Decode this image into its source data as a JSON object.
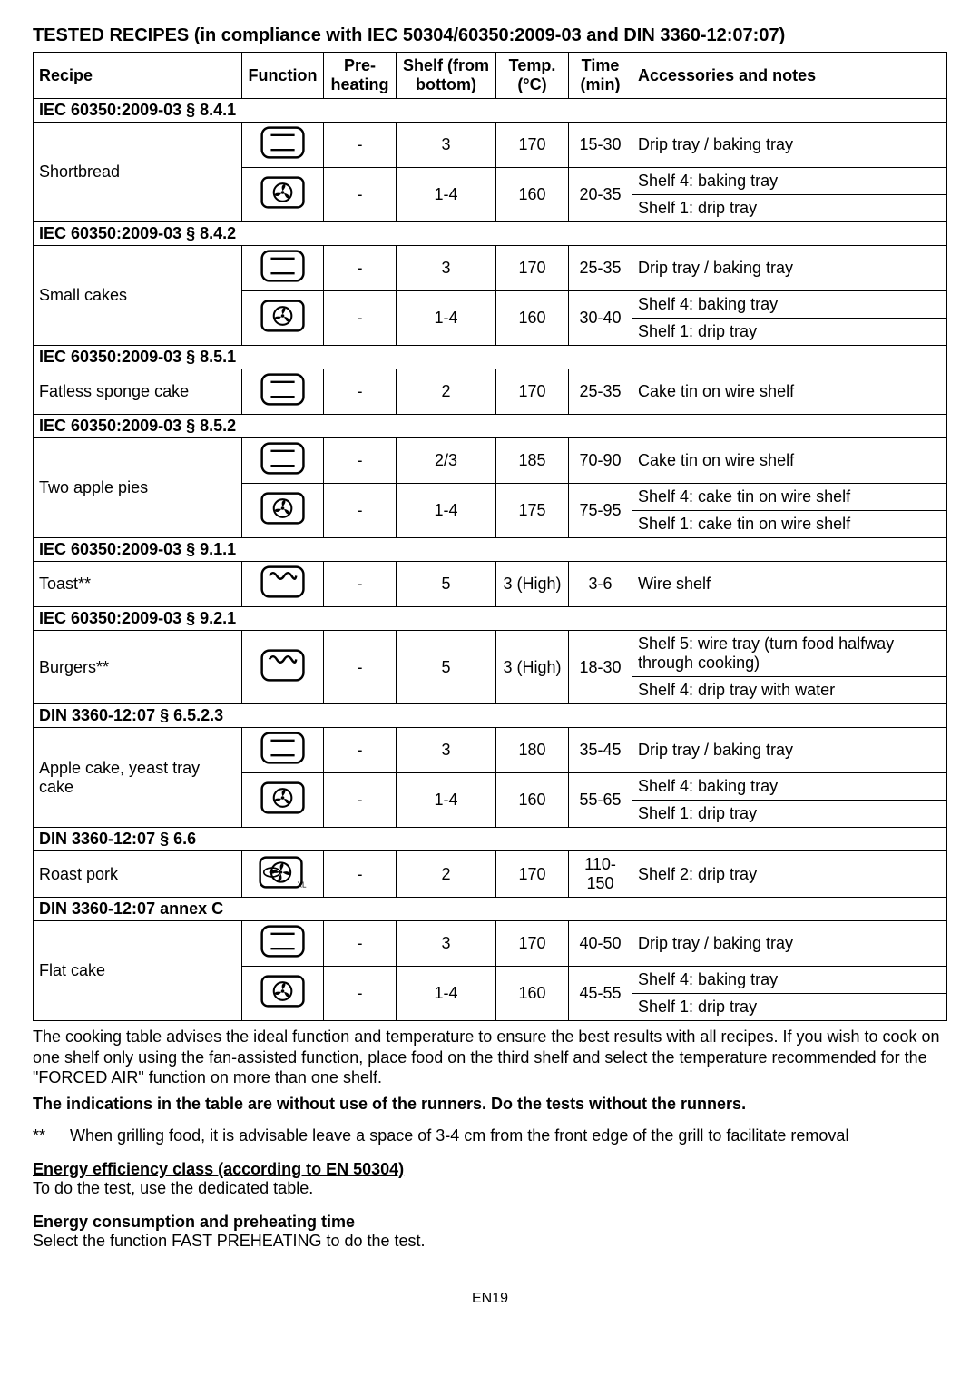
{
  "page": {
    "title": "TESTED RECIPES (in compliance with IEC 50304/60350:2009-03 and DIN 3360-12:07:07)",
    "footer": "EN19"
  },
  "columns": {
    "recipe": "Recipe",
    "function": "Function",
    "preheating": "Pre-heating",
    "shelf": "Shelf (from bottom)",
    "temp": "Temp. (°C)",
    "time": "Time (min)",
    "notes": "Accessories and notes"
  },
  "widths": {
    "recipe": 230,
    "function": 90,
    "preheating": 80,
    "shelf": 110,
    "temp": 80,
    "time": 70
  },
  "icons": {
    "conventional": "conventional",
    "fan": "fan",
    "grill": "grill",
    "turbogrill": "turbogrill"
  },
  "sections": [
    {
      "label": "IEC 60350:2009-03 § 8.4.1",
      "recipes": [
        {
          "name": "Shortbread",
          "rows": [
            {
              "icon": "conventional",
              "pre": "-",
              "shelf": "3",
              "temp": "170",
              "time": "15-30",
              "notes": [
                "Drip tray / baking tray"
              ]
            },
            {
              "icon": "fan",
              "pre": "-",
              "shelf": "1-4",
              "temp": "160",
              "time": "20-35",
              "notes": [
                "Shelf 4: baking tray",
                "Shelf 1: drip tray"
              ]
            }
          ]
        }
      ]
    },
    {
      "label": "IEC 60350:2009-03 § 8.4.2",
      "recipes": [
        {
          "name": "Small cakes",
          "rows": [
            {
              "icon": "conventional",
              "pre": "-",
              "shelf": "3",
              "temp": "170",
              "time": "25-35",
              "notes": [
                "Drip tray / baking tray"
              ]
            },
            {
              "icon": "fan",
              "pre": "-",
              "shelf": "1-4",
              "temp": "160",
              "time": "30-40",
              "notes": [
                "Shelf 4: baking tray",
                "Shelf 1: drip tray"
              ]
            }
          ]
        }
      ]
    },
    {
      "label": "IEC 60350:2009-03 § 8.5.1",
      "recipes": [
        {
          "name": "Fatless sponge cake",
          "rows": [
            {
              "icon": "conventional",
              "pre": "-",
              "shelf": "2",
              "temp": "170",
              "time": "25-35",
              "notes": [
                "Cake tin on wire shelf"
              ]
            }
          ]
        }
      ]
    },
    {
      "label": "IEC 60350:2009-03 § 8.5.2",
      "recipes": [
        {
          "name": "Two apple pies",
          "rows": [
            {
              "icon": "conventional",
              "pre": "-",
              "shelf": "2/3",
              "temp": "185",
              "time": "70-90",
              "notes": [
                "Cake tin on wire shelf"
              ]
            },
            {
              "icon": "fan",
              "pre": "-",
              "shelf": "1-4",
              "temp": "175",
              "time": "75-95",
              "notes": [
                "Shelf 4: cake tin on wire shelf",
                "Shelf 1: cake tin on wire shelf"
              ]
            }
          ]
        }
      ]
    },
    {
      "label": "IEC 60350:2009-03 § 9.1.1",
      "recipes": [
        {
          "name": "Toast**",
          "rows": [
            {
              "icon": "grill",
              "pre": "-",
              "shelf": "5",
              "temp": "3 (High)",
              "time": "3-6",
              "notes": [
                "Wire shelf"
              ]
            }
          ]
        }
      ]
    },
    {
      "label": "IEC 60350:2009-03 § 9.2.1",
      "recipes": [
        {
          "name": "Burgers**",
          "rows": [
            {
              "icon": "grill",
              "pre": "-",
              "shelf": "5",
              "temp": "3 (High)",
              "time": "18-30",
              "notes": [
                "Shelf 5: wire tray (turn food halfway through cooking)",
                "Shelf 4: drip tray with water"
              ]
            }
          ]
        }
      ]
    },
    {
      "label": "DIN 3360-12:07 § 6.5.2.3",
      "recipes": [
        {
          "name": "Apple cake, yeast tray cake",
          "rows": [
            {
              "icon": "conventional",
              "pre": "-",
              "shelf": "3",
              "temp": "180",
              "time": "35-45",
              "notes": [
                "Drip tray / baking tray"
              ]
            },
            {
              "icon": "fan",
              "pre": "-",
              "shelf": "1-4",
              "temp": "160",
              "time": "55-65",
              "notes": [
                "Shelf 4: baking tray",
                "Shelf 1: drip tray"
              ]
            }
          ]
        }
      ]
    },
    {
      "label": "DIN 3360-12:07 § 6.6",
      "recipes": [
        {
          "name": "Roast pork",
          "rows": [
            {
              "icon": "turbogrill",
              "pre": "-",
              "shelf": "2",
              "temp": "170",
              "time": "110-150",
              "notes": [
                "Shelf 2: drip tray"
              ]
            }
          ]
        }
      ]
    },
    {
      "label": "DIN 3360-12:07 annex C",
      "recipes": [
        {
          "name": "Flat cake",
          "rows": [
            {
              "icon": "conventional",
              "pre": "-",
              "shelf": "3",
              "temp": "170",
              "time": "40-50",
              "notes": [
                "Drip tray / baking tray"
              ]
            },
            {
              "icon": "fan",
              "pre": "-",
              "shelf": "1-4",
              "temp": "160",
              "time": "45-55",
              "notes": [
                "Shelf 4: baking tray",
                "Shelf 1: drip tray"
              ]
            }
          ]
        }
      ]
    }
  ],
  "afterText": {
    "p1": "The cooking table advises the ideal function and temperature to ensure the best results with all recipes. If you wish to cook on one shelf only using the fan-assisted function, place food on the third shelf and select the temperature recommended for the \"FORCED AIR\" function on more than one shelf.",
    "bold1": "The indications in the table are without use of the runners. Do the tests without the runners.",
    "starPrefix": "**",
    "star": "When grilling food, it is advisable leave a space of 3-4 cm from the front edge of the grill to facilitate removal",
    "eeHeading": "Energy efficiency class (according to EN 50304)",
    "eeText": "To do the test, use the dedicated table.",
    "ecHeading": "Energy consumption and preheating time",
    "ecText": "Select the  function FAST PREHEATING to do the test."
  },
  "svgIcons": {
    "conventional": "<svg viewBox='0 0 60 44'><rect x='2' y='2' width='56' height='40' rx='10' ry='10' fill='none' stroke='#000' stroke-width='3'/><line x1='14' y1='12' x2='46' y2='12' stroke='#000' stroke-width='3'/><line x1='14' y1='32' x2='46' y2='32' stroke='#000' stroke-width='3'/></svg>",
    "fan": "<svg viewBox='0 0 60 44'><rect x='2' y='2' width='56' height='40' rx='8' ry='8' fill='none' stroke='#000' stroke-width='3'/><circle cx='30' cy='22' r='12' fill='none' stroke='#000' stroke-width='2.5'/><g transform='translate(30 22)' fill='#000'><path d='M0,-2 Q6,-10 2,-11 Q-3,-9 0,-2 Z'/><path transform='rotate(120)' d='M0,-2 Q6,-10 2,-11 Q-3,-9 0,-2 Z'/><path transform='rotate(240)' d='M0,-2 Q6,-10 2,-11 Q-3,-9 0,-2 Z'/></g><circle cx='30' cy='22' r='2.2' fill='#000'/></svg>",
    "grill": "<svg viewBox='0 0 60 44'><rect x='2' y='2' width='56' height='40' rx='10' ry='10' fill='none' stroke='#000' stroke-width='3'/><path d='M12 14 Q17 6 22 14 Q27 22 32 14 Q37 6 42 14 Q47 22 48 14' fill='none' stroke='#000' stroke-width='3'/></svg>",
    "turbogrill": "<svg viewBox='0 0 64 44'><rect x='2' y='2' width='56' height='40' rx='8' ry='8' fill='none' stroke='#000' stroke-width='3'/><g transform='translate(30 22)'><circle r='13' fill='none' stroke='#000' stroke-width='2.5'/><g fill='#000'><path d='M0,-2 Q6,-11 2,-12 Q-3,-10 0,-2 Z'/><path transform='rotate(90)' d='M0,-2 Q6,-11 2,-12 Q-3,-10 0,-2 Z'/><path transform='rotate(180)' d='M0,-2 Q6,-11 2,-12 Q-3,-10 0,-2 Z'/><path transform='rotate(270)' d='M0,-2 Q6,-11 2,-12 Q-3,-10 0,-2 Z'/></g><circle r='2' fill='#000'/></g><ellipse cx='18' cy='22' rx='11' ry='6' fill='none' stroke='#000' stroke-width='2'/><ellipse cx='18' cy='22' rx='4' ry='2' fill='#000'/><text x='52' y='42' font-size='10' font-family='Arial' fill='#000'>XL</text></svg>"
  }
}
